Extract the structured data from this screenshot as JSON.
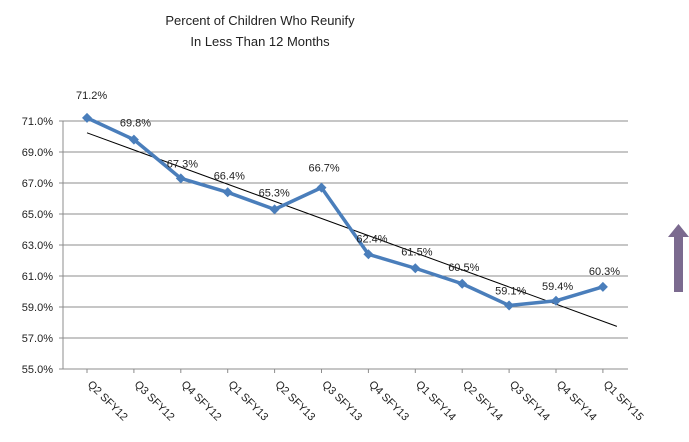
{
  "chart_data": {
    "type": "line",
    "title": [
      "Percent of Children Who Reunify",
      "In Less Than 12 Months"
    ],
    "categories": [
      "Q2 SFY12",
      "Q3 SFY12",
      "Q4 SFY12",
      "Q1 SFY13",
      "Q2 SFY13",
      "Q3 SFY13",
      "Q4 SFY13",
      "Q1 SFY14",
      "Q2 SFY14",
      "Q3 SFY14",
      "Q4 SFY14",
      "Q1 SFY15"
    ],
    "series": [
      {
        "values": [
          71.2,
          69.8,
          67.3,
          66.4,
          65.3,
          66.7,
          62.4,
          61.5,
          60.5,
          59.1,
          59.4,
          60.3
        ],
        "labels": [
          "71.2%",
          "69.8%",
          "67.3%",
          "66.4%",
          "65.3%",
          "66.7%",
          "62.4%",
          "61.5%",
          "60.5%",
          "59.1%",
          "59.4%",
          "60.3%"
        ],
        "color": "#4a7ebb",
        "marker": "diamond"
      }
    ],
    "trendline": {
      "type": "linear",
      "color": "#000000"
    },
    "yticks": [
      "55.0%",
      "57.0%",
      "59.0%",
      "61.0%",
      "63.0%",
      "65.0%",
      "67.0%",
      "69.0%",
      "71.0%"
    ],
    "ylim": [
      55,
      72
    ],
    "grid": true,
    "legend": "none"
  },
  "side_arrow": {
    "icon": "up-arrow-icon",
    "color": "#7b6a8f"
  }
}
